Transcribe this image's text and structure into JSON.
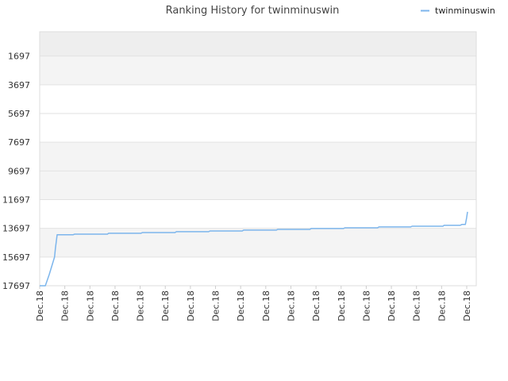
{
  "chart_data": {
    "type": "line",
    "title": "Ranking History for twinminuswin",
    "legend": {
      "position": "top-right",
      "entries": [
        "twinminuswin"
      ]
    },
    "y_reversed": true,
    "ylim": [
      17697,
      0
    ],
    "yticks": [
      1697,
      3697,
      5697,
      7697,
      9697,
      11697,
      13697,
      15697,
      17697
    ],
    "yticklabels": [
      "1697",
      "3697",
      "5697",
      "7697",
      "9697",
      "11697",
      "13697",
      "15697",
      "17697"
    ],
    "xticklabels": [
      "Dec.18",
      "Dec.18",
      "Dec.18",
      "Dec.18",
      "Dec.18",
      "Dec.18",
      "Dec.18",
      "Dec.18",
      "Dec.18",
      "Dec.18",
      "Dec.18",
      "Dec.18",
      "Dec.18",
      "Dec.18",
      "Dec.18",
      "Dec.18",
      "Dec.18",
      "Dec.18"
    ],
    "grid": true,
    "series": [
      {
        "name": "twinminuswin",
        "color": "#7cb5ec",
        "x": [
          0,
          0.013,
          0.022,
          0.03,
          0.034,
          0.036,
          0.04,
          0.077,
          0.08,
          0.155,
          0.158,
          0.232,
          0.235,
          0.31,
          0.313,
          0.387,
          0.39,
          0.464,
          0.467,
          0.542,
          0.545,
          0.619,
          0.622,
          0.696,
          0.699,
          0.774,
          0.777,
          0.85,
          0.853,
          0.924,
          0.926,
          0.963,
          0.967,
          0.975,
          0.978,
          0.98
        ],
        "y": [
          17697,
          17697,
          16900,
          16100,
          15700,
          15100,
          14140,
          14140,
          14100,
          14100,
          14040,
          14040,
          13990,
          13990,
          13930,
          13930,
          13880,
          13880,
          13820,
          13820,
          13770,
          13770,
          13710,
          13710,
          13660,
          13660,
          13600,
          13600,
          13550,
          13550,
          13490,
          13490,
          13430,
          13430,
          12950,
          12550
        ]
      }
    ]
  }
}
